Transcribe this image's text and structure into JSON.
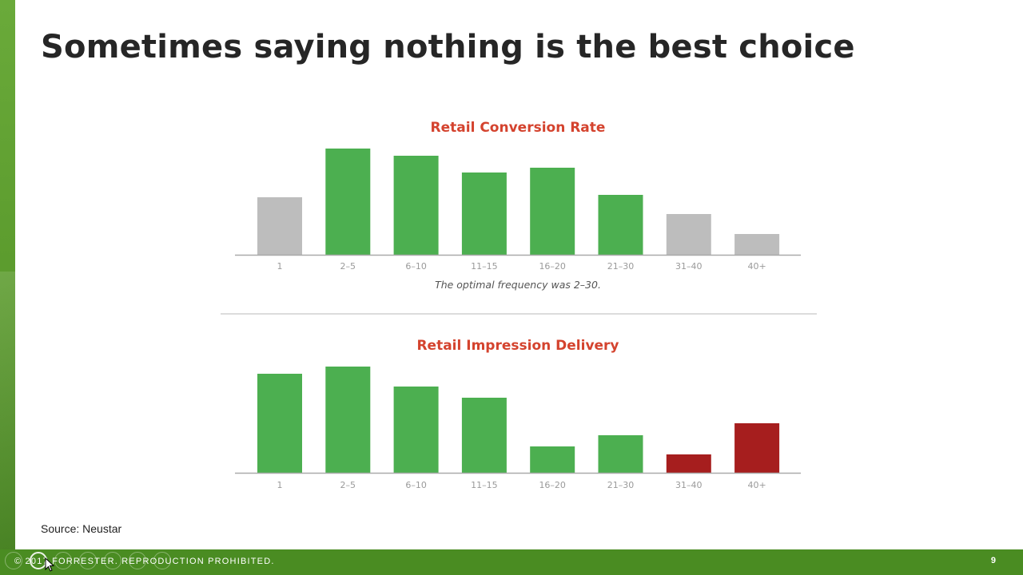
{
  "slide": {
    "title": "Sometimes saying nothing is the best choice",
    "source": "Source: Neustar",
    "footer_text": "© 2017 FORRESTER. REPRODUCTION PROHIBITED.",
    "page_number": "9"
  },
  "colors": {
    "green": "#4caf50",
    "gray": "#bdbdbd",
    "red": "#a61e1e",
    "title_red": "#d4432e",
    "footer": "#4a8c22"
  },
  "chart_data": [
    {
      "type": "bar",
      "title": "Retail Conversion Rate",
      "categories": [
        "1",
        "2–5",
        "6–10",
        "11–15",
        "16–20",
        "21–30",
        "31–40",
        "40+"
      ],
      "values": [
        72,
        133,
        124,
        103,
        109,
        75,
        51,
        26
      ],
      "bar_colors": [
        "gray",
        "green",
        "green",
        "green",
        "green",
        "green",
        "gray",
        "gray"
      ],
      "annotation": "The optimal frequency was 2–30.",
      "xlabel": "",
      "ylabel": "",
      "ylim": [
        0,
        140
      ]
    },
    {
      "type": "bar",
      "title": "Retail Impression Delivery",
      "categories": [
        "1",
        "2–5",
        "6–10",
        "11–15",
        "16–20",
        "21–30",
        "31–40",
        "40+"
      ],
      "values": [
        124,
        133,
        108,
        94,
        33,
        47,
        23,
        62
      ],
      "bar_colors": [
        "green",
        "green",
        "green",
        "green",
        "green",
        "green",
        "red",
        "red"
      ],
      "xlabel": "",
      "ylabel": "",
      "ylim": [
        0,
        140
      ]
    }
  ]
}
